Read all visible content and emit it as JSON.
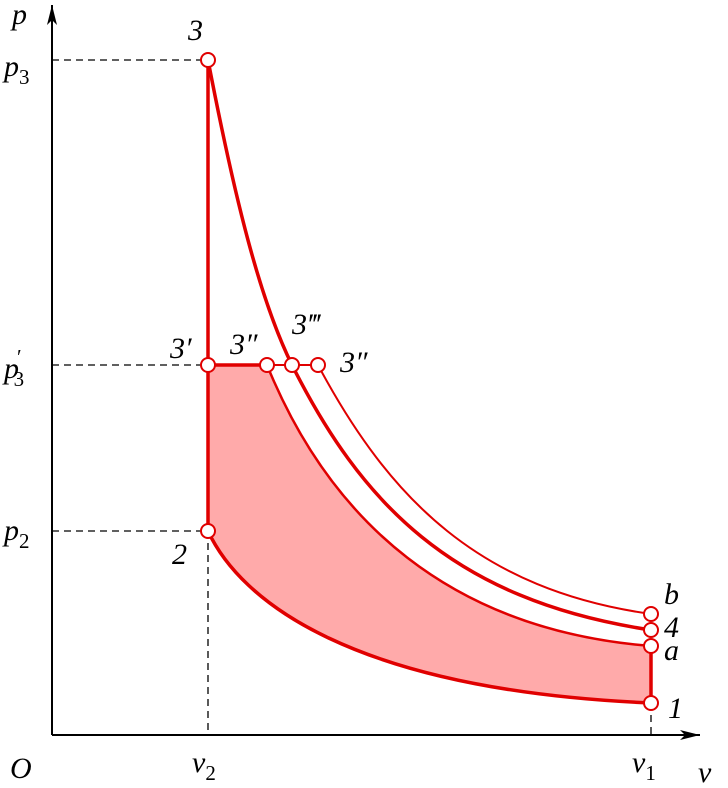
{
  "axes": {
    "y": "p",
    "x": "v",
    "origin": "O"
  },
  "y_labels": [
    {
      "symbol": "p",
      "sub": "3"
    },
    {
      "symbol": "p",
      "sub": "3",
      "prime": "′"
    },
    {
      "symbol": "p",
      "sub": "2"
    }
  ],
  "x_labels": [
    {
      "symbol": "v",
      "sub": "2"
    },
    {
      "symbol": "v",
      "sub": "1"
    }
  ],
  "points": [
    "3",
    "3′",
    "2",
    "3″",
    "3‴",
    "3″",
    "b",
    "4",
    "a",
    "1"
  ]
}
